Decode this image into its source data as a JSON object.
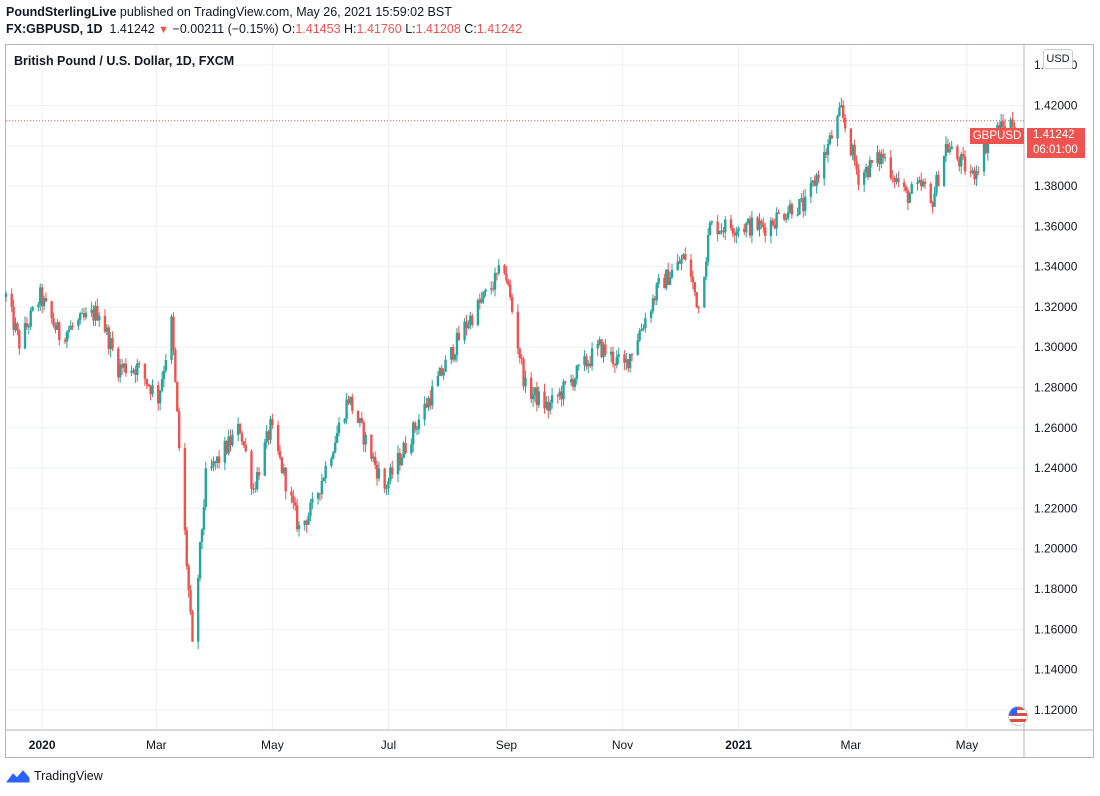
{
  "header": {
    "publisher": "PoundSterlingLive",
    "published_text": "published on TradingView.com, May 26, 2021 15:59:02 BST"
  },
  "quote": {
    "symbol": "FX:GBPUSD, 1D",
    "last": "1.41242",
    "change": "−0.00211 (−0.15%)",
    "open_label": "O:",
    "open": "1.41453",
    "high_label": "H:",
    "high": "1.41760",
    "low_label": "L:",
    "low": "1.41208",
    "close_label": "C:",
    "close": "1.41242",
    "down_color": "#ef5350",
    "up_color": "#26a69a"
  },
  "price_tag": {
    "symbol": "GBPUSD",
    "price": "1.41242",
    "countdown": "06:01:00"
  },
  "currency_button": "USD",
  "footer": {
    "brand": "TradingView"
  },
  "chart_data": {
    "type": "candlestick",
    "title": "British Pound / U.S. Dollar, 1D, FXCM",
    "interval": "1D",
    "ylim": [
      1.11,
      1.45
    ],
    "y_ticks": [
      "1.44000",
      "1.42000",
      "1.40000",
      "1.38000",
      "1.36000",
      "1.34000",
      "1.32000",
      "1.30000",
      "1.28000",
      "1.26000",
      "1.24000",
      "1.22000",
      "1.20000",
      "1.18000",
      "1.16000",
      "1.14000",
      "1.12000"
    ],
    "x_ticks": [
      {
        "label": "2020",
        "bold": true,
        "date": "2020-01-01"
      },
      {
        "label": "Mar",
        "bold": false,
        "date": "2020-03-01"
      },
      {
        "label": "May",
        "bold": false,
        "date": "2020-05-01"
      },
      {
        "label": "Jul",
        "bold": false,
        "date": "2020-07-01"
      },
      {
        "label": "Sep",
        "bold": false,
        "date": "2020-09-01"
      },
      {
        "label": "Nov",
        "bold": false,
        "date": "2020-11-01"
      },
      {
        "label": "2021",
        "bold": true,
        "date": "2021-01-01"
      },
      {
        "label": "Mar",
        "bold": false,
        "date": "2021-03-01"
      },
      {
        "label": "May",
        "bold": false,
        "date": "2021-05-01"
      }
    ],
    "x_range": [
      "2019-12-13",
      "2021-05-31"
    ],
    "last_price": 1.41242,
    "grid": true,
    "path_anchors": [
      {
        "date": "2019-12-13",
        "close": 1.325
      },
      {
        "date": "2019-12-20",
        "close": 1.302
      },
      {
        "date": "2019-12-31",
        "close": 1.325
      },
      {
        "date": "2020-01-10",
        "close": 1.306
      },
      {
        "date": "2020-01-31",
        "close": 1.318
      },
      {
        "date": "2020-02-10",
        "close": 1.29
      },
      {
        "date": "2020-02-20",
        "close": 1.29
      },
      {
        "date": "2020-03-02",
        "close": 1.275
      },
      {
        "date": "2020-03-09",
        "close": 1.312
      },
      {
        "date": "2020-03-13",
        "close": 1.25
      },
      {
        "date": "2020-03-20",
        "close": 1.15
      },
      {
        "date": "2020-03-27",
        "close": 1.235
      },
      {
        "date": "2020-04-14",
        "close": 1.26
      },
      {
        "date": "2020-04-21",
        "close": 1.23
      },
      {
        "date": "2020-04-30",
        "close": 1.26
      },
      {
        "date": "2020-05-15",
        "close": 1.21
      },
      {
        "date": "2020-05-22",
        "close": 1.22
      },
      {
        "date": "2020-06-10",
        "close": 1.275
      },
      {
        "date": "2020-06-29",
        "close": 1.23
      },
      {
        "date": "2020-07-20",
        "close": 1.27
      },
      {
        "date": "2020-08-10",
        "close": 1.31
      },
      {
        "date": "2020-08-31",
        "close": 1.34
      },
      {
        "date": "2020-09-11",
        "close": 1.28
      },
      {
        "date": "2020-09-23",
        "close": 1.27
      },
      {
        "date": "2020-10-20",
        "close": 1.3
      },
      {
        "date": "2020-11-02",
        "close": 1.29
      },
      {
        "date": "2020-11-20",
        "close": 1.33
      },
      {
        "date": "2020-12-04",
        "close": 1.345
      },
      {
        "date": "2020-12-11",
        "close": 1.32
      },
      {
        "date": "2020-12-17",
        "close": 1.36
      },
      {
        "date": "2021-01-04",
        "close": 1.36
      },
      {
        "date": "2021-01-15",
        "close": 1.36
      },
      {
        "date": "2021-01-29",
        "close": 1.37
      },
      {
        "date": "2021-02-05",
        "close": 1.37
      },
      {
        "date": "2021-02-24",
        "close": 1.417
      },
      {
        "date": "2021-03-05",
        "close": 1.385
      },
      {
        "date": "2021-03-18",
        "close": 1.395
      },
      {
        "date": "2021-03-30",
        "close": 1.375
      },
      {
        "date": "2021-04-08",
        "close": 1.38
      },
      {
        "date": "2021-04-12",
        "close": 1.37
      },
      {
        "date": "2021-04-20",
        "close": 1.4
      },
      {
        "date": "2021-05-04",
        "close": 1.385
      },
      {
        "date": "2021-05-13",
        "close": 1.405
      },
      {
        "date": "2021-05-26",
        "close": 1.4124
      }
    ]
  }
}
